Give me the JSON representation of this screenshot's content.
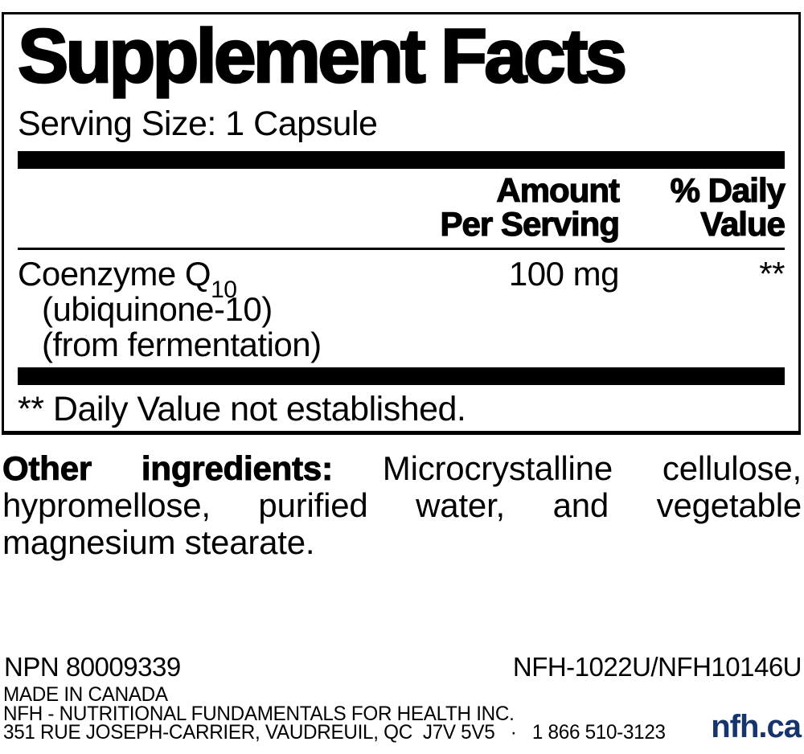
{
  "panel": {
    "title": "Supplement Facts",
    "serving_size": "Serving Size: 1 Capsule",
    "columns": {
      "amount_line1": "Amount",
      "amount_line2": "Per Serving",
      "dv_line1": "% Daily",
      "dv_line2": "Value"
    },
    "rows": [
      {
        "name_main": "Coenzyme Q",
        "name_subscript": "10",
        "name_detail1": "(ubiquinone-10)",
        "name_detail2": "(from fermentation)",
        "amount": "100 mg",
        "daily_value": "**"
      }
    ],
    "footnote": "** Daily Value not established."
  },
  "other_ingredients": {
    "label": "Other ingredients:",
    "line1_rest": "Microcrystalline cellulose,",
    "line2": "hypromellose, purified water, and vegetable",
    "line3": "magnesium stearate."
  },
  "footer": {
    "npn": "NPN 80009339",
    "product_code": "NFH-1022U/NFH10146U",
    "made_in": "MADE IN CANADA",
    "company": "NFH - NUTRITIONAL FUNDAMENTALS FOR HEALTH INC.",
    "address": "351 RUE JOSEPH-CARRIER, VAUDREUIL, QC  J7V 5V5   ·   1 866 510-3123",
    "website": "nfh.ca",
    "website_color": "#17356d"
  },
  "colors": {
    "text": "#000000",
    "background": "#ffffff",
    "accent_navy": "#17356d"
  }
}
